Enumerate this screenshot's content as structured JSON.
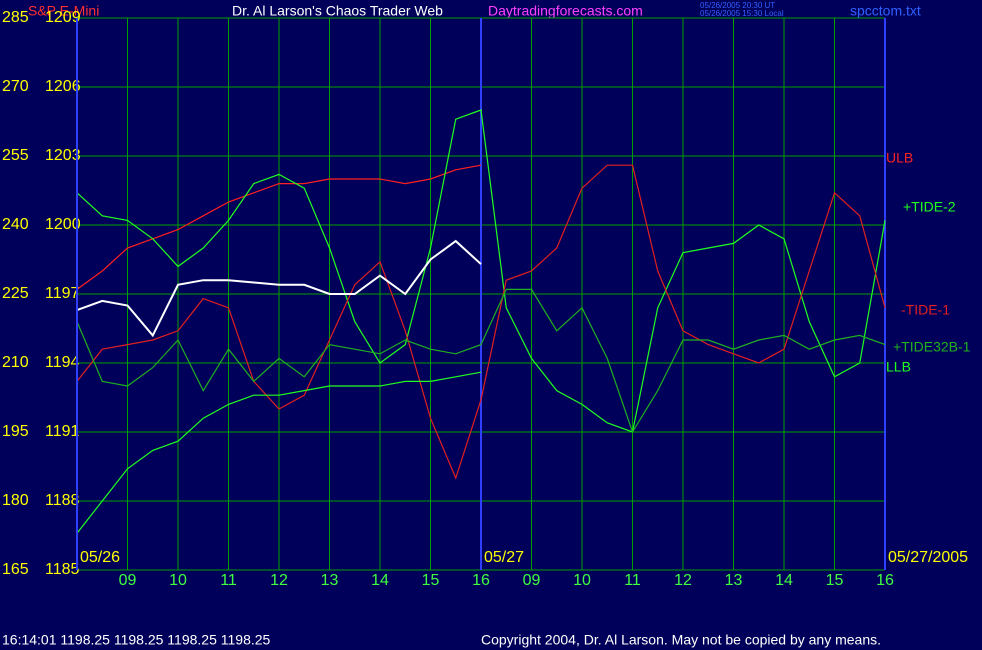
{
  "header": {
    "instrument": "S&P E-Mini",
    "title": "Dr. Al Larson's Chaos Trader Web",
    "site": "Daytradingforecasts.com",
    "stamp_ut": "05/26/2005 20:30 UT",
    "stamp_local": "05/26/2005 15:30 Local",
    "file": "spcctom.txt"
  },
  "footer": {
    "quote": "16:14:01  1198.25 1198.25 1198.25 1198.25",
    "copyright": "Copyright 2004, Dr. Al Larson. May not be copied by any means."
  },
  "chart_data": {
    "type": "line",
    "x": [
      0,
      0.5,
      1,
      1.5,
      2,
      2.5,
      3,
      3.5,
      4,
      4.5,
      5,
      5.5,
      6,
      6.5,
      7,
      7.5,
      8,
      8.5,
      9,
      9.5,
      10,
      10.5,
      11,
      11.5,
      12,
      12.5,
      13,
      13.5,
      14,
      14.5,
      15,
      15.5,
      16
    ],
    "xlim": [
      0,
      16
    ],
    "xticks": [
      {
        "value": 1,
        "label": "09"
      },
      {
        "value": 2,
        "label": "10"
      },
      {
        "value": 3,
        "label": "11"
      },
      {
        "value": 4,
        "label": "12"
      },
      {
        "value": 5,
        "label": "13"
      },
      {
        "value": 6,
        "label": "14"
      },
      {
        "value": 7,
        "label": "15"
      },
      {
        "value": 8,
        "label": "16"
      },
      {
        "value": 9,
        "label": "09"
      },
      {
        "value": 10,
        "label": "10"
      },
      {
        "value": 11,
        "label": "11"
      },
      {
        "value": 12,
        "label": "12"
      },
      {
        "value": 13,
        "label": "13"
      },
      {
        "value": 14,
        "label": "14"
      },
      {
        "value": 15,
        "label": "15"
      },
      {
        "value": 16,
        "label": "16"
      }
    ],
    "date_labels": [
      {
        "value": 0,
        "label": "05/26"
      },
      {
        "value": 8,
        "label": "05/27"
      },
      {
        "value": 16,
        "label": "05/27/2005"
      }
    ],
    "ylim": [
      165,
      285
    ],
    "yticks": [
      165,
      180,
      195,
      210,
      225,
      240,
      255,
      270,
      285
    ],
    "y2lim": [
      1185,
      1209
    ],
    "y2ticks": [
      1185,
      1188,
      1191,
      1194,
      1197,
      1200,
      1203,
      1206,
      1209
    ],
    "grid": true,
    "series": [
      {
        "name": "ULB",
        "color": "#ff2020",
        "values": [
          226,
          230,
          235,
          237,
          239,
          242,
          245,
          247,
          249,
          249,
          250,
          250,
          250,
          249,
          250,
          252,
          253,
          null,
          null,
          null,
          null,
          null,
          null,
          null,
          null,
          null,
          null,
          null,
          null,
          null,
          null,
          null,
          null
        ]
      },
      {
        "name": "+TIDE-2",
        "color": "#20ff20",
        "values": [
          247,
          242,
          241,
          237,
          231,
          235,
          241,
          249,
          251,
          248,
          235,
          219,
          210,
          214,
          235,
          263,
          265,
          222,
          211,
          204,
          201,
          197,
          195,
          222,
          234,
          235,
          236,
          240,
          237,
          219,
          207,
          210,
          241
        ]
      },
      {
        "name": "-TIDE-1",
        "color": "#e02020",
        "values": [
          206,
          213,
          214,
          215,
          217,
          224,
          222,
          206,
          200,
          203,
          215,
          227,
          232,
          217,
          198,
          185,
          202,
          228,
          230,
          235,
          248,
          253,
          253,
          230,
          217,
          214,
          212,
          210,
          213,
          230,
          247,
          242,
          222
        ]
      },
      {
        "name": "+TIDE32B-1",
        "color": "#20b020",
        "values": [
          219,
          206,
          205,
          209,
          215,
          204,
          213,
          206,
          211,
          207,
          214,
          213,
          212,
          215,
          213,
          212,
          214,
          226,
          226,
          217,
          222,
          211,
          195,
          204,
          215,
          215,
          213,
          215,
          216,
          213,
          215,
          216,
          214
        ]
      },
      {
        "name": "LLB",
        "color": "#20ff20",
        "values": [
          173,
          180,
          187,
          191,
          193,
          198,
          201,
          203,
          203,
          204,
          205,
          205,
          205,
          206,
          206,
          207,
          208,
          null,
          null,
          null,
          null,
          null,
          null,
          null,
          null,
          null,
          null,
          null,
          null,
          null,
          null,
          null,
          null
        ]
      },
      {
        "color": "#ffffff",
        "axis": "y2",
        "values": [
          1196.3,
          1196.7,
          1196.5,
          1195.2,
          1197.4,
          1197.6,
          1197.6,
          1197.5,
          1197.4,
          1197.4,
          1197,
          1197,
          1197.8,
          1197,
          1198.5,
          1199.3,
          1198.3,
          null,
          null,
          null,
          null,
          null,
          null,
          null,
          null,
          null,
          null,
          null,
          null,
          null,
          null,
          null,
          null
        ]
      }
    ]
  }
}
